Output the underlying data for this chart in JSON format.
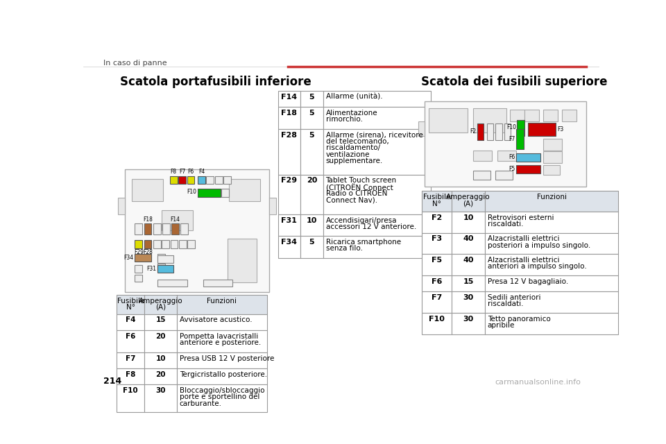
{
  "page_bg": "#ffffff",
  "header_text": "In caso di panne",
  "page_number": "214",
  "watermark": "carmanualsonline.info",
  "section1_title": "Scatola portafusibili inferiore",
  "section3_title": "Scatola dei fusibili superiore",
  "mid_table_rows": [
    [
      "F14",
      "5",
      "Allarme (unità)."
    ],
    [
      "F18",
      "5",
      "Alimentazione\nrimorchio."
    ],
    [
      "F28",
      "5",
      "Allarme (sirena), ricevitore\ndel telecomando,\nriscaldamento/\nventilazione\nsupplementare."
    ],
    [
      "F29",
      "20",
      "Tablet Touch screen\n(CITROËN Connect\nRadio o CITROËN\nConnect Nav)."
    ],
    [
      "F31",
      "10",
      "Accendisigari/presa\naccessori 12 V anteriore."
    ],
    [
      "F34",
      "5",
      "Ricarica smartphone\nsenza filo."
    ]
  ],
  "left_table_header": [
    "Fusibile\nN°",
    "Amperaggio\n(A)",
    "Funzioni"
  ],
  "left_table_rows": [
    [
      "F4",
      "15",
      "Avvisatore acustico."
    ],
    [
      "F6",
      "20",
      "Pompetta lavacristalli\nanteriore e posteriore."
    ],
    [
      "F7",
      "10",
      "Presa USB 12 V posteriore"
    ],
    [
      "F8",
      "20",
      "Tergicristallo posteriore."
    ],
    [
      "F10",
      "30",
      "Bloccaggio/sbloccaggio\nporte e sportellino del\ncarburante."
    ]
  ],
  "right_table_header": [
    "Fusibile\nN°",
    "Amperaggio\n(A)",
    "Funzioni"
  ],
  "right_table_rows": [
    [
      "F2",
      "10",
      "Retrovisori esterni\nriscaldati."
    ],
    [
      "F3",
      "40",
      "Alzacristalli elettrici\nposteriori a impulso singolo."
    ],
    [
      "F5",
      "40",
      "Alzacristalli elettrici\nanteriori a impulso singolo."
    ],
    [
      "F6",
      "15",
      "Presa 12 V bagagliaio."
    ],
    [
      "F7",
      "30",
      "Sedili anteriori\nriscaldati."
    ],
    [
      "F10",
      "30",
      "Tetto panoramico\napribile"
    ]
  ],
  "table_header_bg": "#dde3ea",
  "table_border_color": "#999999",
  "fuse_colors": {
    "yellow": "#dddd00",
    "red": "#cc0000",
    "green": "#00bb00",
    "lightblue": "#55bbdd",
    "brown": "#aa6633",
    "tan": "#bb8855",
    "white": "#eeeeee"
  }
}
